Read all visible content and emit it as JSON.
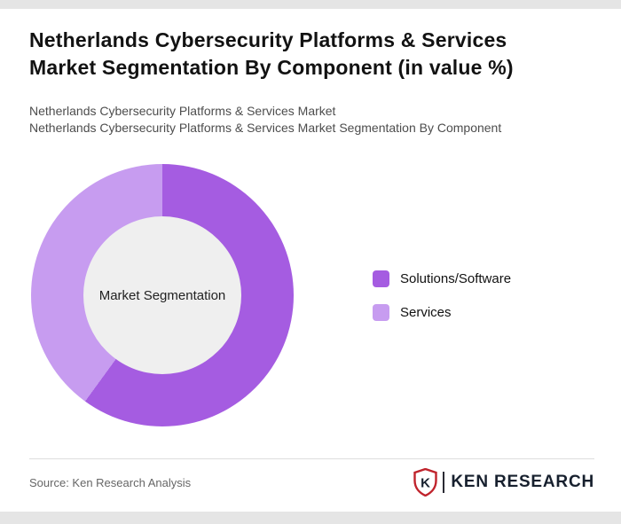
{
  "page": {
    "title": "Netherlands Cybersecurity Platforms & Services Market Segmentation By Component (in value %)",
    "subtitle1": "Netherlands Cybersecurity Platforms & Services Market",
    "subtitle2": "Netherlands Cybersecurity Platforms & Services Market Segmentation By Component"
  },
  "chart_data": {
    "type": "pie",
    "donut": true,
    "title": "Netherlands Cybersecurity Platforms & Services Market Segmentation By Component (in value %)",
    "center_label": "Market Segmentation",
    "categories": [
      "Solutions/Software",
      "Services"
    ],
    "values": [
      60,
      40
    ],
    "colors": [
      "#a55ce1",
      "#c79cf0"
    ],
    "center_color": "#efefef",
    "legend_position": "right",
    "start_angle": "top-clockwise"
  },
  "footer": {
    "source": "Source: Ken Research Analysis",
    "logo_letter": "K",
    "logo_text": "KEN RESEARCH",
    "logo_accent_color": "#c0232c",
    "logo_text_color": "#17202e"
  }
}
